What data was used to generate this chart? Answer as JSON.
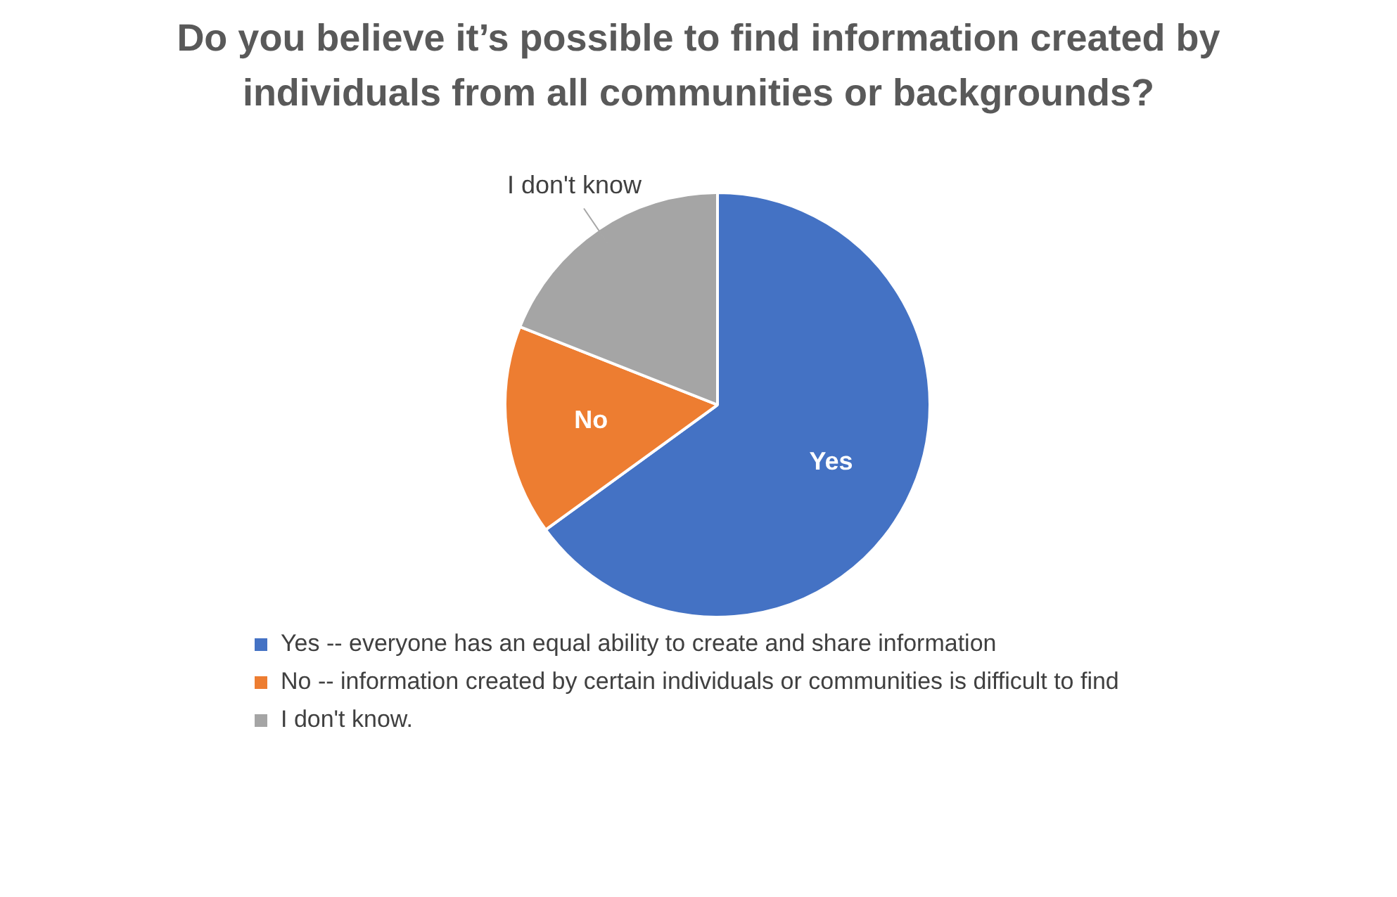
{
  "chart_data": {
    "type": "pie",
    "title": "Do you believe it’s possible to find information created by individuals from all communities or backgrounds?",
    "categories": [
      "Yes -- everyone has an equal ability to create and share information",
      "No -- information created by certain individuals or communities is difficult to find",
      "I don't know."
    ],
    "values": [
      65,
      16,
      19
    ],
    "colors": [
      "#4472c4",
      "#ed7d31",
      "#a5a5a5"
    ],
    "annotations": [
      "Yes",
      "No",
      "I don't know"
    ],
    "legend": "bottom"
  }
}
